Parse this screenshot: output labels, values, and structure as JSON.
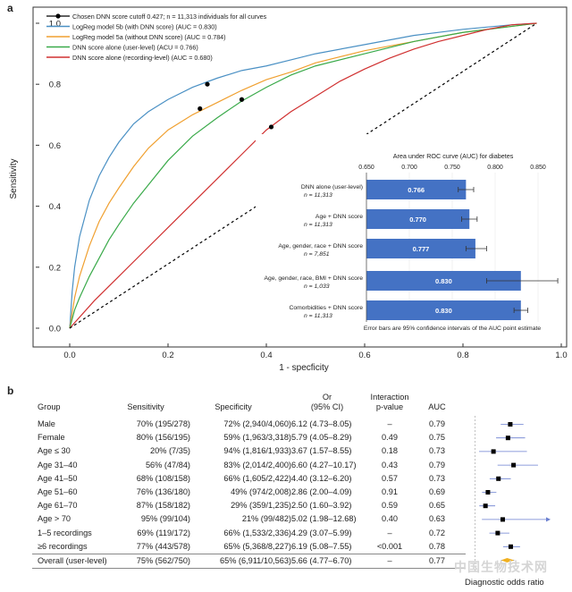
{
  "panel_labels": {
    "a": "a",
    "b": "b"
  },
  "chart_data": [
    {
      "type": "line",
      "ylabel": "Sensitivity",
      "xlabel": "1 - specficity",
      "xlim": [
        0,
        1
      ],
      "ylim": [
        0,
        1
      ],
      "xticks": [
        "0.0",
        "0.2",
        "0.4",
        "0.6",
        "0.8",
        "1.0"
      ],
      "yticks": [
        "0.0",
        "0.2",
        "0.4",
        "0.6",
        "0.8",
        "1.0"
      ],
      "legend_position": "top-left",
      "legend": [
        {
          "label": "Chosen DNN score cutoff 0.427; n = 11,313 individuals for all curves",
          "color": "#000000",
          "marker": "dot"
        },
        {
          "label": "LogReg model 5b (with DNN score) (AUC = 0.830)",
          "color": "#4a90c4"
        },
        {
          "label": "LogReg model 5a (without DNN score) (AUC = 0.784)",
          "color": "#f0a030"
        },
        {
          "label": "DNN score alone (user-level) (ACU = 0.766)",
          "color": "#3aaa4a"
        },
        {
          "label": "DNN score alone (recording-level) (AUC = 0.680)",
          "color": "#d03030"
        }
      ],
      "series": [
        {
          "color": "#4a90c4",
          "x": [
            0,
            0.005,
            0.01,
            0.02,
            0.04,
            0.06,
            0.08,
            0.1,
            0.13,
            0.16,
            0.2,
            0.25,
            0.3,
            0.35,
            0.4,
            0.45,
            0.5,
            0.6,
            0.7,
            0.8,
            0.9,
            0.95
          ],
          "y": [
            0,
            0.12,
            0.2,
            0.3,
            0.42,
            0.5,
            0.56,
            0.61,
            0.67,
            0.71,
            0.75,
            0.79,
            0.82,
            0.845,
            0.86,
            0.88,
            0.9,
            0.93,
            0.96,
            0.98,
            0.995,
            1.0
          ]
        },
        {
          "color": "#f0a030",
          "x": [
            0,
            0.01,
            0.02,
            0.04,
            0.06,
            0.08,
            0.1,
            0.13,
            0.16,
            0.2,
            0.25,
            0.3,
            0.35,
            0.4,
            0.45,
            0.5,
            0.6,
            0.7,
            0.8,
            0.9,
            0.95
          ],
          "y": [
            0,
            0.1,
            0.17,
            0.27,
            0.35,
            0.41,
            0.46,
            0.53,
            0.59,
            0.65,
            0.7,
            0.74,
            0.78,
            0.815,
            0.84,
            0.87,
            0.91,
            0.94,
            0.97,
            0.99,
            1.0
          ]
        },
        {
          "color": "#3aaa4a",
          "x": [
            0,
            0.01,
            0.02,
            0.04,
            0.06,
            0.08,
            0.1,
            0.13,
            0.16,
            0.2,
            0.25,
            0.3,
            0.35,
            0.4,
            0.45,
            0.5,
            0.6,
            0.7,
            0.8,
            0.9,
            0.95
          ],
          "y": [
            0,
            0.06,
            0.1,
            0.17,
            0.23,
            0.29,
            0.34,
            0.41,
            0.47,
            0.55,
            0.63,
            0.69,
            0.745,
            0.79,
            0.83,
            0.86,
            0.9,
            0.94,
            0.97,
            0.99,
            1.0
          ]
        },
        {
          "color": "#d03030",
          "x": [
            0,
            0.05,
            0.1,
            0.15,
            0.2,
            0.25,
            0.3,
            0.35,
            0.4,
            0.45,
            0.5,
            0.55,
            0.6,
            0.65,
            0.7,
            0.75,
            0.8,
            0.85,
            0.9,
            0.95
          ],
          "y": [
            0,
            0.09,
            0.17,
            0.25,
            0.33,
            0.41,
            0.49,
            0.57,
            0.65,
            0.71,
            0.76,
            0.81,
            0.85,
            0.885,
            0.915,
            0.94,
            0.96,
            0.98,
            0.995,
            1.0
          ]
        },
        {
          "color": "#000000",
          "dashed": true,
          "x": [
            0,
            0.95
          ],
          "y": [
            0,
            1.0
          ]
        }
      ],
      "cutoff_points": [
        {
          "x": 0.28,
          "y": 0.8
        },
        {
          "x": 0.265,
          "y": 0.72
        },
        {
          "x": 0.35,
          "y": 0.75
        },
        {
          "x": 0.41,
          "y": 0.66
        }
      ]
    },
    {
      "type": "bar",
      "orientation": "horizontal",
      "title": "Area under ROC curve (AUC) for diabetes",
      "xlim": [
        0.65,
        0.85
      ],
      "xticks": [
        "0.650",
        "0.700",
        "0.750",
        "0.800",
        "0.850"
      ],
      "bar_color": "#4472c4",
      "categories": [
        {
          "label": "DNN alone (user-level)",
          "n": "n = 11,313",
          "value": 0.766,
          "value_label": "0.766",
          "ci": [
            0.757,
            0.775
          ]
        },
        {
          "label": "Age + DNN score",
          "n": "n = 11,313",
          "value": 0.77,
          "value_label": "0.770",
          "ci": [
            0.761,
            0.779
          ]
        },
        {
          "label": "Age, gender, race + DNN score",
          "n": "n = 7,851",
          "value": 0.777,
          "value_label": "0.777",
          "ci": [
            0.766,
            0.79
          ]
        },
        {
          "label": "Age, gender, race, BMI + DNN score",
          "n": "n = 1,033",
          "value": 0.83,
          "value_label": "0.830",
          "ci": [
            0.79,
            0.873
          ]
        },
        {
          "label": "Comorbidities + DNN score",
          "n": "n = 11,313",
          "value": 0.83,
          "value_label": "0.830",
          "ci": [
            0.822,
            0.838
          ]
        }
      ],
      "footnote": "Error bars are 95% confidence intervals of the AUC point estimate"
    },
    {
      "type": "table",
      "headers": {
        "group": "Group",
        "sensitivity": "Sensitivity",
        "specificity": "Specificity",
        "or": "Or\n(95% CI)",
        "interaction": "Interaction\np-value",
        "auc": "AUC"
      },
      "rows": [
        {
          "group": "Male",
          "sens": "70% (195/278)",
          "spec": "72% (2,940/4,060)",
          "or": "6.12 (4.73–8.05)",
          "p": "–",
          "auc": "0.79",
          "dor": 6.12,
          "dor_ci": [
            4.73,
            8.05
          ]
        },
        {
          "group": "Female",
          "sens": "80% (156/195)",
          "spec": "59% (1,963/3,318)",
          "or": "5.79 (4.05–8.29)",
          "p": "0.49",
          "auc": "0.75",
          "dor": 5.79,
          "dor_ci": [
            4.05,
            8.29
          ]
        },
        {
          "group": "Age ≤ 30",
          "sens": "20% (7/35)",
          "spec": "94% (1,816/1,933)",
          "or": "3.67 (1.57–8.55)",
          "p": "0.18",
          "auc": "0.73",
          "dor": 3.67,
          "dor_ci": [
            1.57,
            8.55
          ]
        },
        {
          "group": "Age 31–40",
          "sens": "56% (47/84)",
          "spec": "83% (2,014/2,400)",
          "or": "6.60 (4.27–10.17)",
          "p": "0.43",
          "auc": "0.79",
          "dor": 6.6,
          "dor_ci": [
            4.27,
            10.17
          ]
        },
        {
          "group": "Age 41–50",
          "sens": "68% (108/158)",
          "spec": "66% (1,605/2,422)",
          "or": "4.40 (3.12–6.20)",
          "p": "0.57",
          "auc": "0.73",
          "dor": 4.4,
          "dor_ci": [
            3.12,
            6.2
          ]
        },
        {
          "group": "Age 51–60",
          "sens": "76% (136/180)",
          "spec": "49% (974/2,008)",
          "or": "2.86 (2.00–4.09)",
          "p": "0.91",
          "auc": "0.69",
          "dor": 2.86,
          "dor_ci": [
            2.0,
            4.09
          ]
        },
        {
          "group": "Age 61–70",
          "sens": "87% (158/182)",
          "spec": "29% (359/1,235)",
          "or": "2.50 (1.60–3.92)",
          "p": "0.59",
          "auc": "0.65",
          "dor": 2.5,
          "dor_ci": [
            1.6,
            3.92
          ]
        },
        {
          "group": "Age > 70",
          "sens": "95% (99/104)",
          "spec": "21% (99/482)",
          "or": "5.02 (1.98–12.68)",
          "p": "0.40",
          "auc": "0.63",
          "dor": 5.02,
          "dor_ci": [
            1.98,
            12.68
          ],
          "arrow": true
        },
        {
          "group": "1–5 recordings",
          "sens": "69% (119/172)",
          "spec": "66% (1,533/2,336)",
          "or": "4.29 (3.07–5.99)",
          "p": "–",
          "auc": "0.72",
          "dor": 4.29,
          "dor_ci": [
            3.07,
            5.99
          ]
        },
        {
          "group": "≥6 recordings",
          "sens": "77% (443/578)",
          "spec": "65% (5,368/8,227)",
          "or": "6.19 (5.08–7.55)",
          "p": "<0.001",
          "auc": "0.78",
          "dor": 6.19,
          "dor_ci": [
            5.08,
            7.55
          ]
        },
        {
          "group": "Overall (user-level)",
          "sens": "75% (562/750)",
          "spec": "65% (6,911/10,563)",
          "or": "5.66 (4.77–6.70)",
          "p": "–",
          "auc": "0.77",
          "dor": 5.66,
          "dor_ci": [
            4.77,
            6.7
          ],
          "overall": true
        }
      ],
      "forest_xlabel": "Diagnostic odds ratio",
      "forest_xlim": [
        0,
        12
      ]
    }
  ],
  "watermark": "中国生物技术网"
}
